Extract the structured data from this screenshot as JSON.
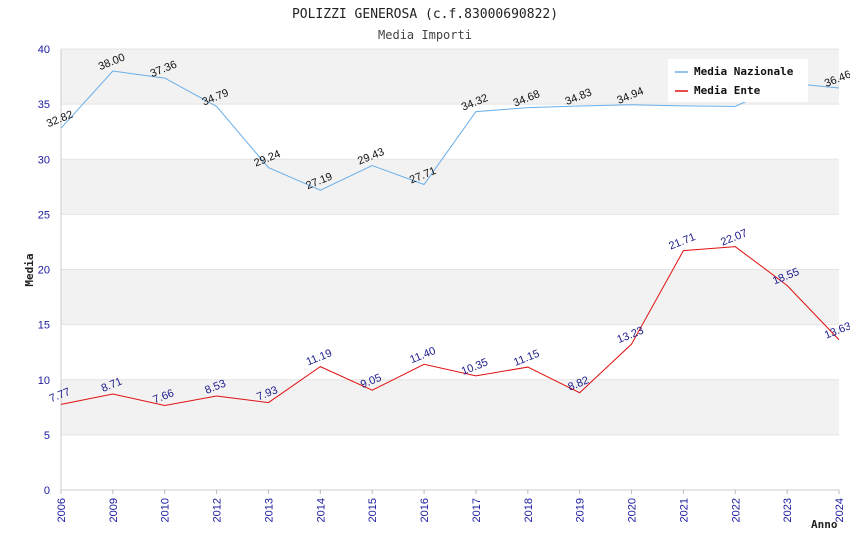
{
  "chart_data": {
    "type": "line",
    "title": "POLIZZI GENEROSA (c.f.83000690822)",
    "subtitle": "Media Importi",
    "xlabel": "Anno",
    "ylabel": "Media",
    "ylim": [
      0,
      40
    ],
    "yticks": [
      0,
      5,
      10,
      15,
      20,
      25,
      30,
      35,
      40
    ],
    "grid": true,
    "legend_position": "top-right",
    "categories": [
      "2006",
      "2009",
      "2010",
      "2012",
      "2013",
      "2014",
      "2015",
      "2016",
      "2017",
      "2018",
      "2019",
      "2020",
      "2021",
      "2022",
      "2023",
      "2024"
    ],
    "series": [
      {
        "name": "Media Nazionale",
        "color": "#6aaee8",
        "values": [
          32.82,
          38.0,
          37.36,
          34.79,
          29.24,
          27.19,
          29.43,
          27.71,
          34.32,
          34.68,
          34.83,
          34.94,
          34.84,
          34.8,
          36.93,
          36.46
        ],
        "labels": [
          "32.82",
          "38.00",
          "37.36",
          "34.79",
          "29.24",
          "27.19",
          "29.43",
          "27.71",
          "34.32",
          "34.68",
          "34.83",
          "34.94",
          "",
          "",
          "",
          "36.46"
        ]
      },
      {
        "name": "Media Ente",
        "color": "#e01010",
        "values": [
          7.77,
          8.71,
          7.66,
          8.53,
          7.93,
          11.19,
          9.05,
          11.4,
          10.35,
          11.15,
          8.82,
          13.23,
          21.71,
          22.07,
          18.55,
          13.63
        ],
        "labels": [
          "7.77",
          "8.71",
          "7.66",
          "8.53",
          "7.93",
          "11.19",
          "9.05",
          "11.40",
          "10.35",
          "11.15",
          "8.82",
          "13.23",
          "21.71",
          "22.07",
          "18.55",
          "13.63"
        ]
      }
    ]
  }
}
